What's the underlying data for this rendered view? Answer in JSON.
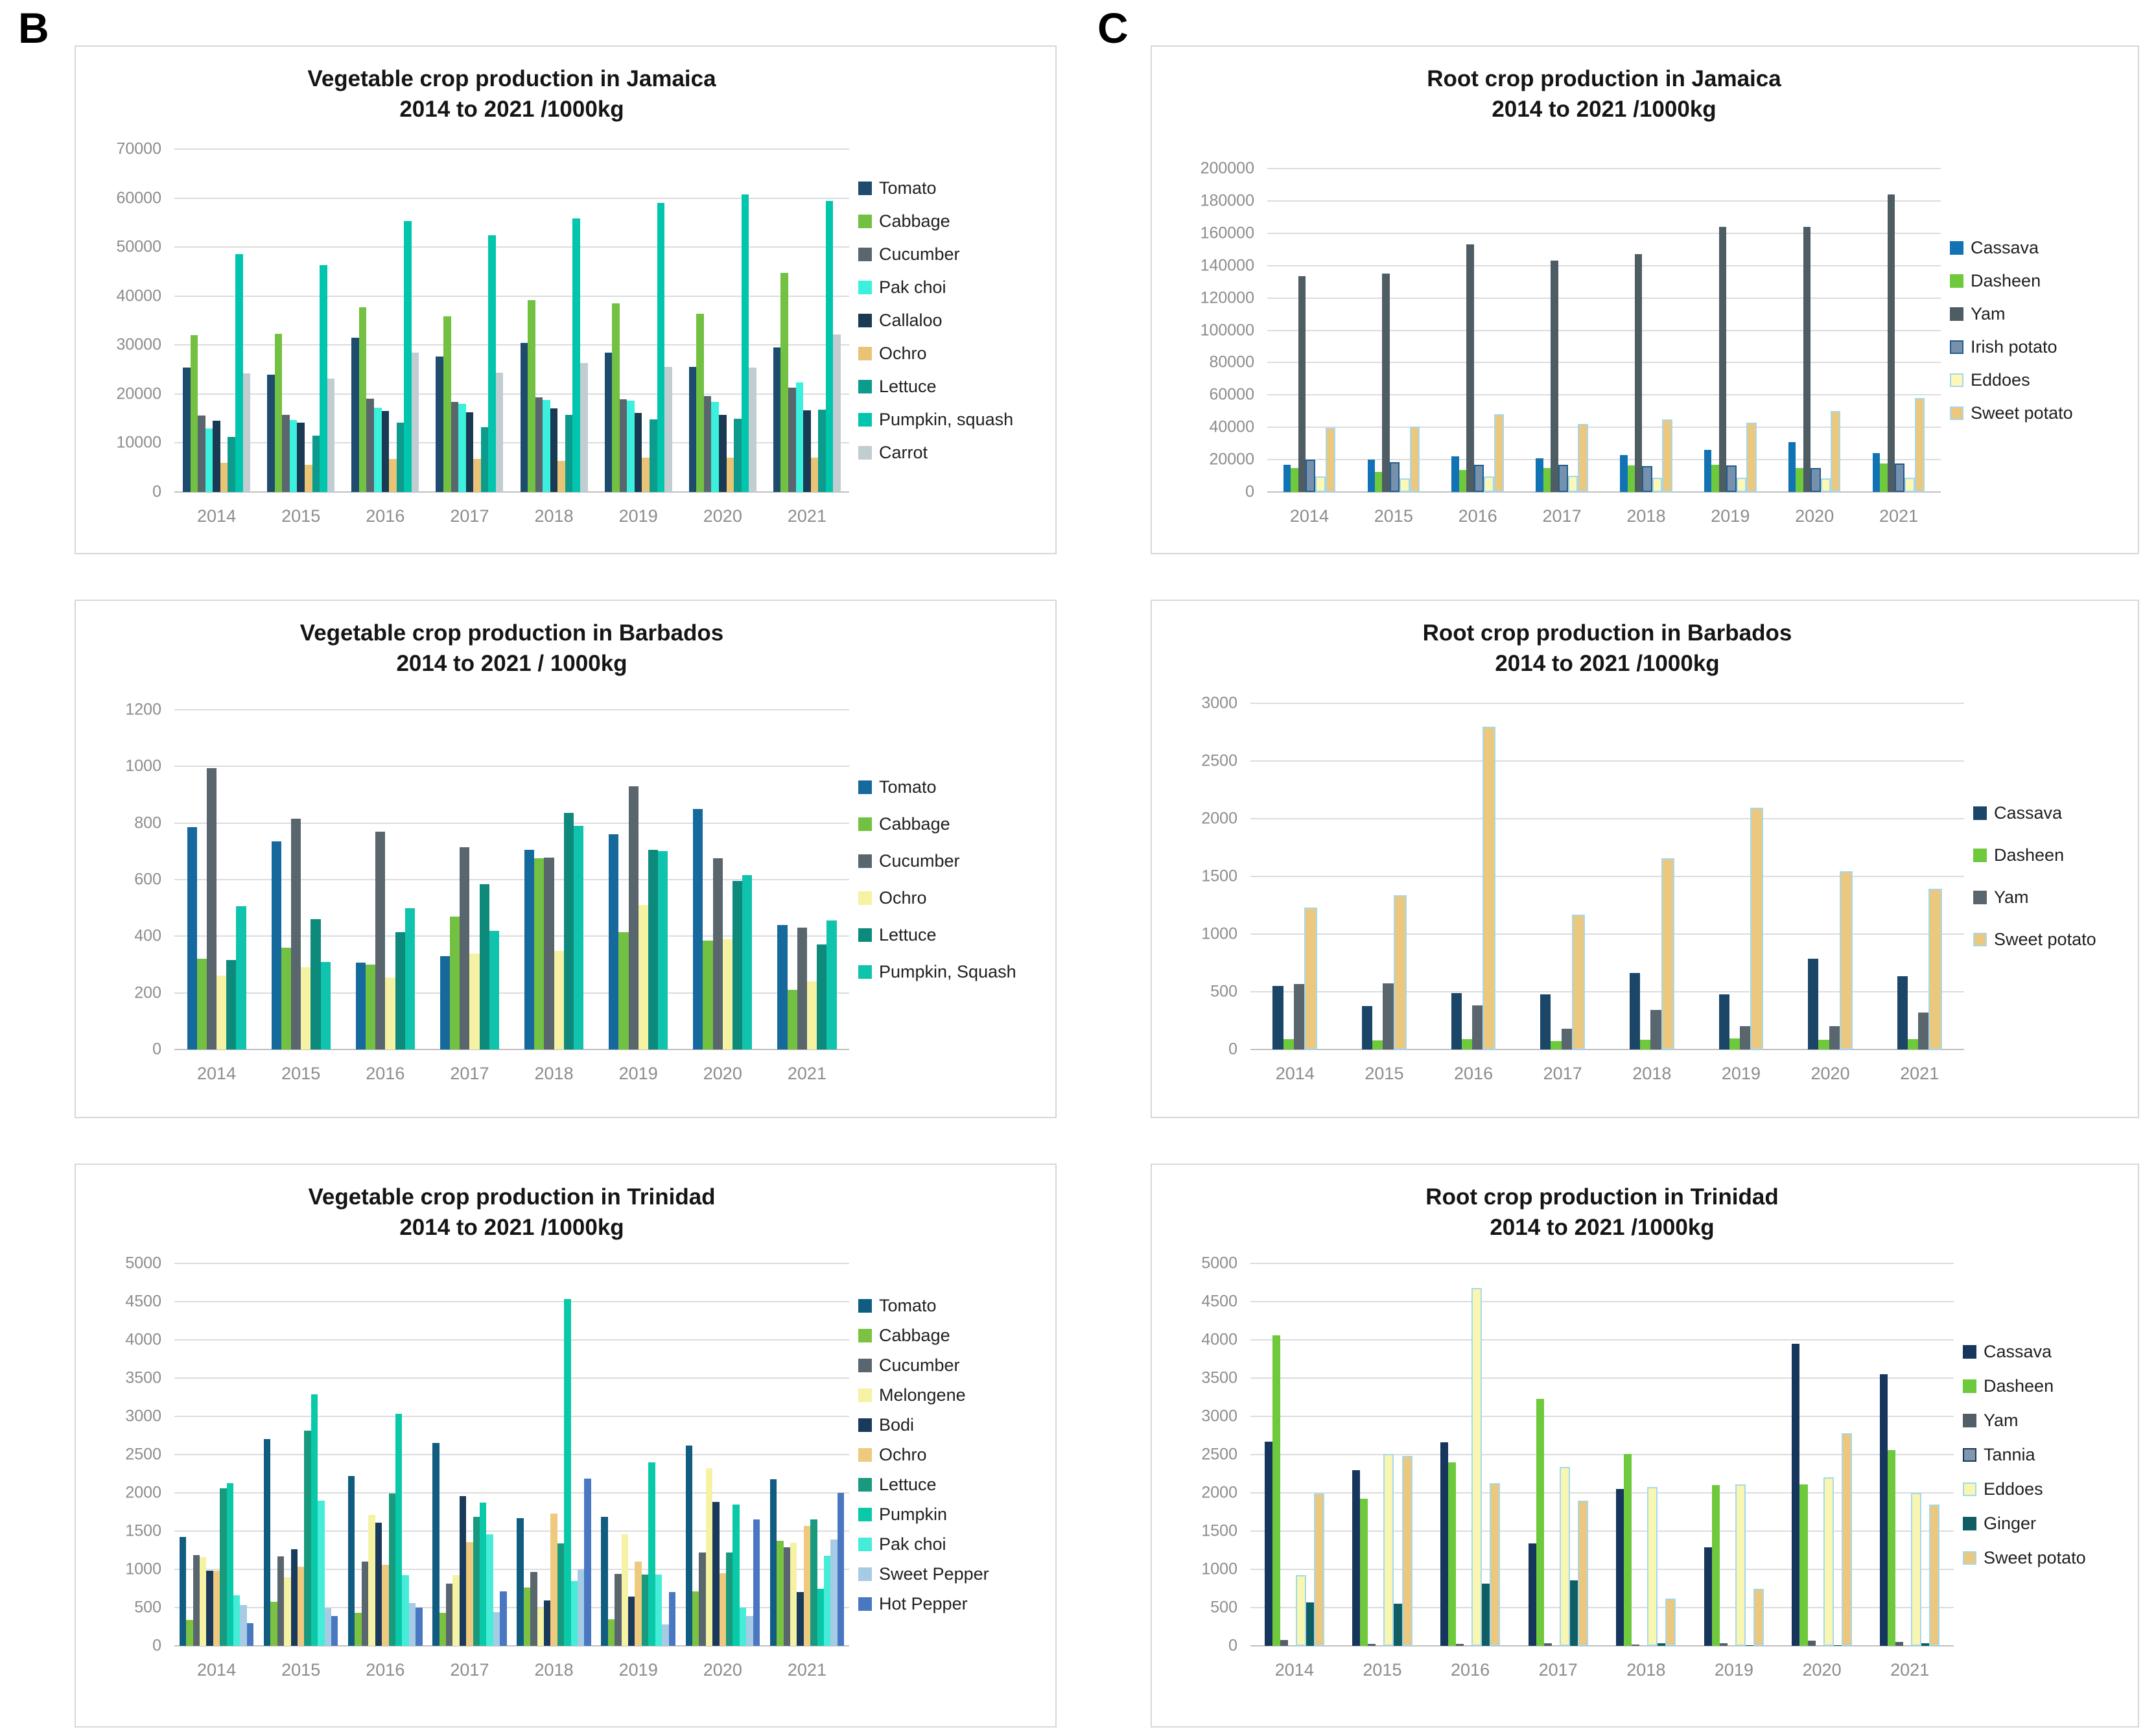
{
  "section_labels": {
    "b": "B",
    "c": "C"
  },
  "chart_data": [
    {
      "id": "vegetable-jamaica",
      "type": "bar",
      "title": "Vegetable crop production in Jamaica",
      "subtitle": "2014 to 2021 /1000kg",
      "categories": [
        "2014",
        "2015",
        "2016",
        "2017",
        "2018",
        "2019",
        "2020",
        "2021"
      ],
      "ylim": [
        0,
        70000
      ],
      "ytick_step": 10000,
      "yticks": [
        "0",
        "10000",
        "20000",
        "30000",
        "40000",
        "50000",
        "60000",
        "70000"
      ],
      "grid": true,
      "legend_position": "right",
      "series": [
        {
          "name": "Tomato",
          "color": "#1e4c6e",
          "values": [
            25400,
            23900,
            31500,
            27700,
            30500,
            28500,
            25600,
            29500
          ]
        },
        {
          "name": "Cabbage",
          "color": "#72c142",
          "values": [
            32000,
            32300,
            37700,
            35800,
            39200,
            38500,
            36400,
            44700
          ]
        },
        {
          "name": "Cucumber",
          "color": "#5a666e",
          "values": [
            15600,
            15800,
            19000,
            18400,
            19300,
            18900,
            19600,
            21300
          ]
        },
        {
          "name": "Pak choi",
          "color": "#3bf0dc",
          "values": [
            13000,
            14700,
            17200,
            18000,
            18800,
            18700,
            18400,
            22300
          ]
        },
        {
          "name": "Callaloo",
          "color": "#193a52",
          "values": [
            14600,
            14100,
            16500,
            16300,
            17100,
            16200,
            15800,
            16700
          ]
        },
        {
          "name": "Ochro",
          "color": "#ebc377",
          "values": [
            5900,
            5600,
            6700,
            6700,
            6400,
            7000,
            7000,
            7000
          ]
        },
        {
          "name": "Lettuce",
          "color": "#0c9b8d",
          "values": [
            11200,
            11500,
            14200,
            13300,
            15700,
            14800,
            15000,
            16800
          ]
        },
        {
          "name": "Pumpkin, squash",
          "color": "#02c5ae",
          "values": [
            48600,
            46300,
            55300,
            52400,
            55900,
            59000,
            60700,
            59400
          ]
        },
        {
          "name": "Carrot",
          "color": "#c2cdd1",
          "values": [
            24200,
            23200,
            28400,
            24400,
            26400,
            25500,
            25400,
            32200
          ]
        }
      ]
    },
    {
      "id": "root-jamaica",
      "type": "bar",
      "title": "Root crop production in Jamaica",
      "subtitle": "2014 to 2021 /1000kg",
      "categories": [
        "2014",
        "2015",
        "2016",
        "2017",
        "2018",
        "2019",
        "2020",
        "2021"
      ],
      "ylim": [
        0,
        200000
      ],
      "ytick_step": 20000,
      "yticks": [
        "0",
        "20000",
        "40000",
        "60000",
        "80000",
        "100000",
        "120000",
        "140000",
        "160000",
        "180000",
        "200000"
      ],
      "grid": true,
      "legend_position": "right",
      "series": [
        {
          "name": "Cassava",
          "color": "#1273b4",
          "values": [
            17000,
            20000,
            22000,
            21000,
            23000,
            26000,
            31000,
            24000
          ]
        },
        {
          "name": "Dasheen",
          "color": "#6fc93c",
          "values": [
            15000,
            12500,
            13500,
            15000,
            16500,
            17000,
            15000,
            17500
          ]
        },
        {
          "name": "Yam",
          "color": "#4e5d63",
          "values": [
            133500,
            135000,
            153000,
            143000,
            147000,
            164000,
            164000,
            184000
          ]
        },
        {
          "name": "Irish potato",
          "color": "#7790ac",
          "border": "#1f5c8e",
          "values": [
            20000,
            18500,
            17000,
            17000,
            16000,
            16500,
            15000,
            17500
          ]
        },
        {
          "name": "Eddoes",
          "color": "#fbf8b8",
          "border": "#a5d8ec",
          "values": [
            9500,
            8500,
            9500,
            10000,
            9000,
            9000,
            8500,
            9000
          ]
        },
        {
          "name": "Sweet potato",
          "color": "#ebc87e",
          "border": "#a5d8ec",
          "values": [
            39500,
            40500,
            48000,
            42000,
            45000,
            43000,
            50000,
            58000
          ]
        }
      ]
    },
    {
      "id": "vegetable-barbados",
      "type": "bar",
      "title": "Vegetable crop production in Barbados",
      "subtitle": "2014 to 2021 / 1000kg",
      "categories": [
        "2014",
        "2015",
        "2016",
        "2017",
        "2018",
        "2019",
        "2020",
        "2021"
      ],
      "ylim": [
        0,
        1200
      ],
      "ytick_step": 200,
      "yticks": [
        "0",
        "200",
        "400",
        "600",
        "800",
        "1000",
        "1200"
      ],
      "grid": true,
      "legend_position": "right",
      "series": [
        {
          "name": "Tomato",
          "color": "#16699c",
          "values": [
            785,
            735,
            308,
            330,
            705,
            760,
            850,
            440
          ]
        },
        {
          "name": "Cabbage",
          "color": "#72c142",
          "values": [
            320,
            360,
            300,
            470,
            675,
            415,
            385,
            210
          ]
        },
        {
          "name": "Cucumber",
          "color": "#5a666e",
          "values": [
            995,
            815,
            770,
            715,
            678,
            930,
            675,
            430
          ]
        },
        {
          "name": "Ochro",
          "color": "#f6f2a3",
          "values": [
            260,
            290,
            255,
            340,
            348,
            510,
            390,
            240
          ]
        },
        {
          "name": "Lettuce",
          "color": "#0e8a7d",
          "values": [
            315,
            460,
            415,
            585,
            835,
            705,
            595,
            370
          ]
        },
        {
          "name": "Pumpkin, Squash",
          "color": "#10c3ac",
          "values": [
            505,
            310,
            500,
            420,
            790,
            700,
            615,
            455
          ]
        }
      ]
    },
    {
      "id": "root-barbados",
      "type": "bar",
      "title": "Root crop production in Barbados",
      "subtitle": "2014 to 2021 /1000kg",
      "categories": [
        "2014",
        "2015",
        "2016",
        "2017",
        "2018",
        "2019",
        "2020",
        "2021"
      ],
      "ylim": [
        0,
        3000
      ],
      "ytick_step": 500,
      "yticks": [
        "0",
        "500",
        "1000",
        "1500",
        "2000",
        "2500",
        "3000"
      ],
      "grid": true,
      "legend_position": "right",
      "series": [
        {
          "name": "Cassava",
          "color": "#1c4668",
          "values": [
            550,
            375,
            490,
            480,
            665,
            480,
            785,
            635
          ]
        },
        {
          "name": "Dasheen",
          "color": "#6fc93c",
          "values": [
            90,
            80,
            90,
            75,
            85,
            95,
            85,
            90
          ]
        },
        {
          "name": "Yam",
          "color": "#5a666e",
          "values": [
            565,
            575,
            380,
            180,
            340,
            200,
            200,
            320
          ]
        },
        {
          "name": "Sweet potato",
          "color": "#ebc87e",
          "border": "#a5d8ec",
          "values": [
            1230,
            1335,
            2800,
            1170,
            1655,
            2095,
            1545,
            1395
          ]
        }
      ]
    },
    {
      "id": "vegetable-trinidad",
      "type": "bar",
      "title": "Vegetable crop production in Trinidad",
      "subtitle": "2014 to 2021 /1000kg",
      "categories": [
        "2014",
        "2015",
        "2016",
        "2017",
        "2018",
        "2019",
        "2020",
        "2021"
      ],
      "ylim": [
        0,
        5000
      ],
      "ytick_step": 500,
      "yticks": [
        "0",
        "500",
        "1000",
        "1500",
        "2000",
        "2500",
        "3000",
        "3500",
        "4000",
        "4500",
        "5000"
      ],
      "grid": true,
      "legend_position": "right",
      "series": [
        {
          "name": "Tomato",
          "color": "#105d81",
          "values": [
            1420,
            2700,
            2220,
            2650,
            1670,
            1690,
            2620,
            2180
          ]
        },
        {
          "name": "Cabbage",
          "color": "#7cc242",
          "values": [
            340,
            580,
            430,
            430,
            760,
            350,
            710,
            1370
          ]
        },
        {
          "name": "Cucumber",
          "color": "#5a666e",
          "values": [
            1190,
            1170,
            1100,
            810,
            970,
            940,
            1220,
            1290
          ]
        },
        {
          "name": "Melongene",
          "color": "#f6f2a3",
          "values": [
            1160,
            900,
            1710,
            920,
            490,
            1460,
            2320,
            1350
          ]
        },
        {
          "name": "Bodi",
          "color": "#1a3a5c",
          "values": [
            980,
            1260,
            1610,
            1960,
            590,
            640,
            1880,
            700
          ]
        },
        {
          "name": "Ochro",
          "color": "#efc97e",
          "values": [
            980,
            1030,
            1060,
            1360,
            1730,
            1100,
            950,
            1570
          ]
        },
        {
          "name": "Lettuce",
          "color": "#199a7f",
          "values": [
            2060,
            2810,
            1990,
            1690,
            1340,
            930,
            1220,
            1650
          ]
        },
        {
          "name": "Pumpkin",
          "color": "#0ac9a9",
          "values": [
            2130,
            3290,
            3030,
            1870,
            4530,
            2400,
            1850,
            750
          ]
        },
        {
          "name": "Pak choi",
          "color": "#45edd9",
          "values": [
            660,
            1900,
            920,
            1460,
            850,
            930,
            500,
            1180
          ]
        },
        {
          "name": "Sweet Pepper",
          "color": "#a6cbe5",
          "values": [
            530,
            490,
            560,
            440,
            1000,
            280,
            390,
            1390
          ]
        },
        {
          "name": "Hot Pepper",
          "color": "#4a77c2",
          "values": [
            300,
            390,
            500,
            710,
            2190,
            700,
            1650,
            2000
          ]
        }
      ]
    },
    {
      "id": "root-trinidad",
      "type": "bar",
      "title": "Root crop production in Trinidad",
      "subtitle": "2014 to 2021 /1000kg",
      "categories": [
        "2014",
        "2015",
        "2016",
        "2017",
        "2018",
        "2019",
        "2020",
        "2021"
      ],
      "ylim": [
        0,
        5000
      ],
      "ytick_step": 500,
      "yticks": [
        "0",
        "500",
        "1000",
        "1500",
        "2000",
        "2500",
        "3000",
        "3500",
        "4000",
        "4500",
        "5000"
      ],
      "grid": true,
      "legend_position": "right",
      "series": [
        {
          "name": "Cassava",
          "color": "#16365e",
          "values": [
            2670,
            2300,
            2660,
            1340,
            2050,
            1290,
            3950,
            3550
          ]
        },
        {
          "name": "Dasheen",
          "color": "#6fc93c",
          "values": [
            4060,
            1920,
            2400,
            3230,
            2510,
            2100,
            2110,
            2560
          ]
        },
        {
          "name": "Yam",
          "color": "#535f67",
          "values": [
            80,
            25,
            25,
            30,
            20,
            30,
            70,
            50
          ]
        },
        {
          "name": "Tannia",
          "color": "#8496ac",
          "border": "#16365e",
          "values": [
            0,
            0,
            0,
            0,
            0,
            0,
            0,
            0
          ]
        },
        {
          "name": "Eddoes",
          "color": "#f9f6b2",
          "border": "#a5d8ec",
          "values": [
            920,
            2510,
            4680,
            2340,
            2080,
            2110,
            2200,
            2000
          ]
        },
        {
          "name": "Ginger",
          "color": "#0f5e66",
          "values": [
            570,
            550,
            810,
            860,
            30,
            10,
            10,
            30
          ]
        },
        {
          "name": "Sweet potato",
          "color": "#ebc87e",
          "border": "#a5d8ec",
          "values": [
            1990,
            2480,
            2130,
            1900,
            620,
            750,
            2780,
            1850
          ]
        }
      ]
    }
  ]
}
